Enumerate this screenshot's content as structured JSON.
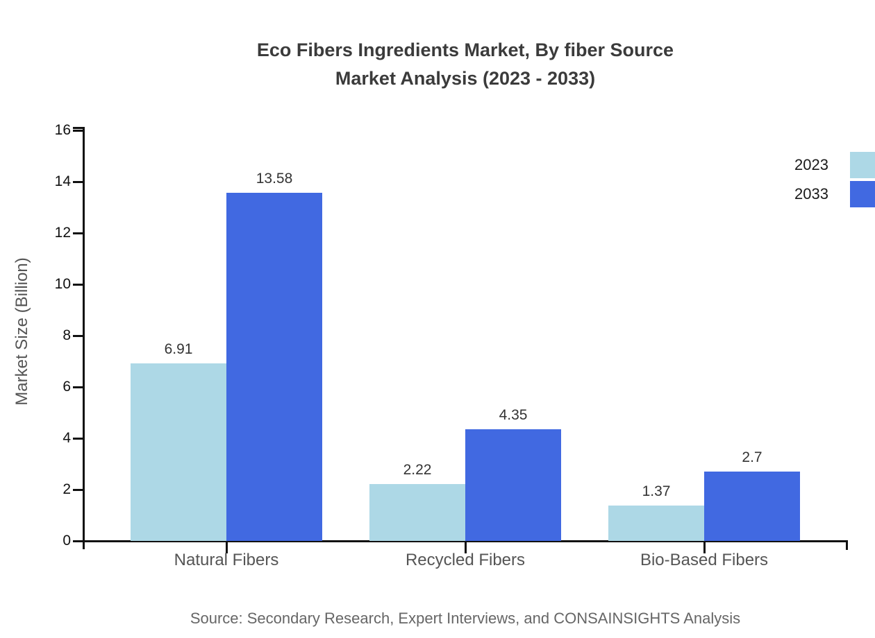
{
  "title": {
    "line1": "Eco Fibers Ingredients Market, By fiber Source",
    "line2": "Market Analysis (2023 - 2033)"
  },
  "source_note": "Source: Secondary Research, Expert Interviews, and CONSAINSIGHTS Analysis",
  "chart_data": {
    "type": "bar",
    "title": "Eco Fibers Ingredients Market, By fiber Source Market Analysis (2023 - 2033)",
    "categories": [
      "Natural Fibers",
      "Recycled Fibers",
      "Bio-Based Fibers"
    ],
    "series": [
      {
        "name": "2023",
        "color": "#ADD8E6",
        "values": [
          6.91,
          2.22,
          1.37
        ]
      },
      {
        "name": "2033",
        "color": "#4169E1",
        "values": [
          13.58,
          4.35,
          2.7
        ]
      }
    ],
    "xlabel": "",
    "ylabel": "Market Size (Billion)",
    "ylim": [
      0,
      16
    ],
    "yticks": [
      0,
      2,
      4,
      6,
      8,
      10,
      12,
      14,
      16
    ],
    "grid": false,
    "legend_position": "top-right",
    "bar_value_labels": [
      "6.91",
      "13.58",
      "2.22",
      "4.35",
      "1.37",
      "2.7"
    ]
  },
  "colors": {
    "series_2023": "#ADD8E6",
    "series_2033": "#4169E1",
    "axis": "#111111",
    "title_text": "#3b3b3b",
    "category_text": "#555555",
    "source_text": "#666666"
  }
}
